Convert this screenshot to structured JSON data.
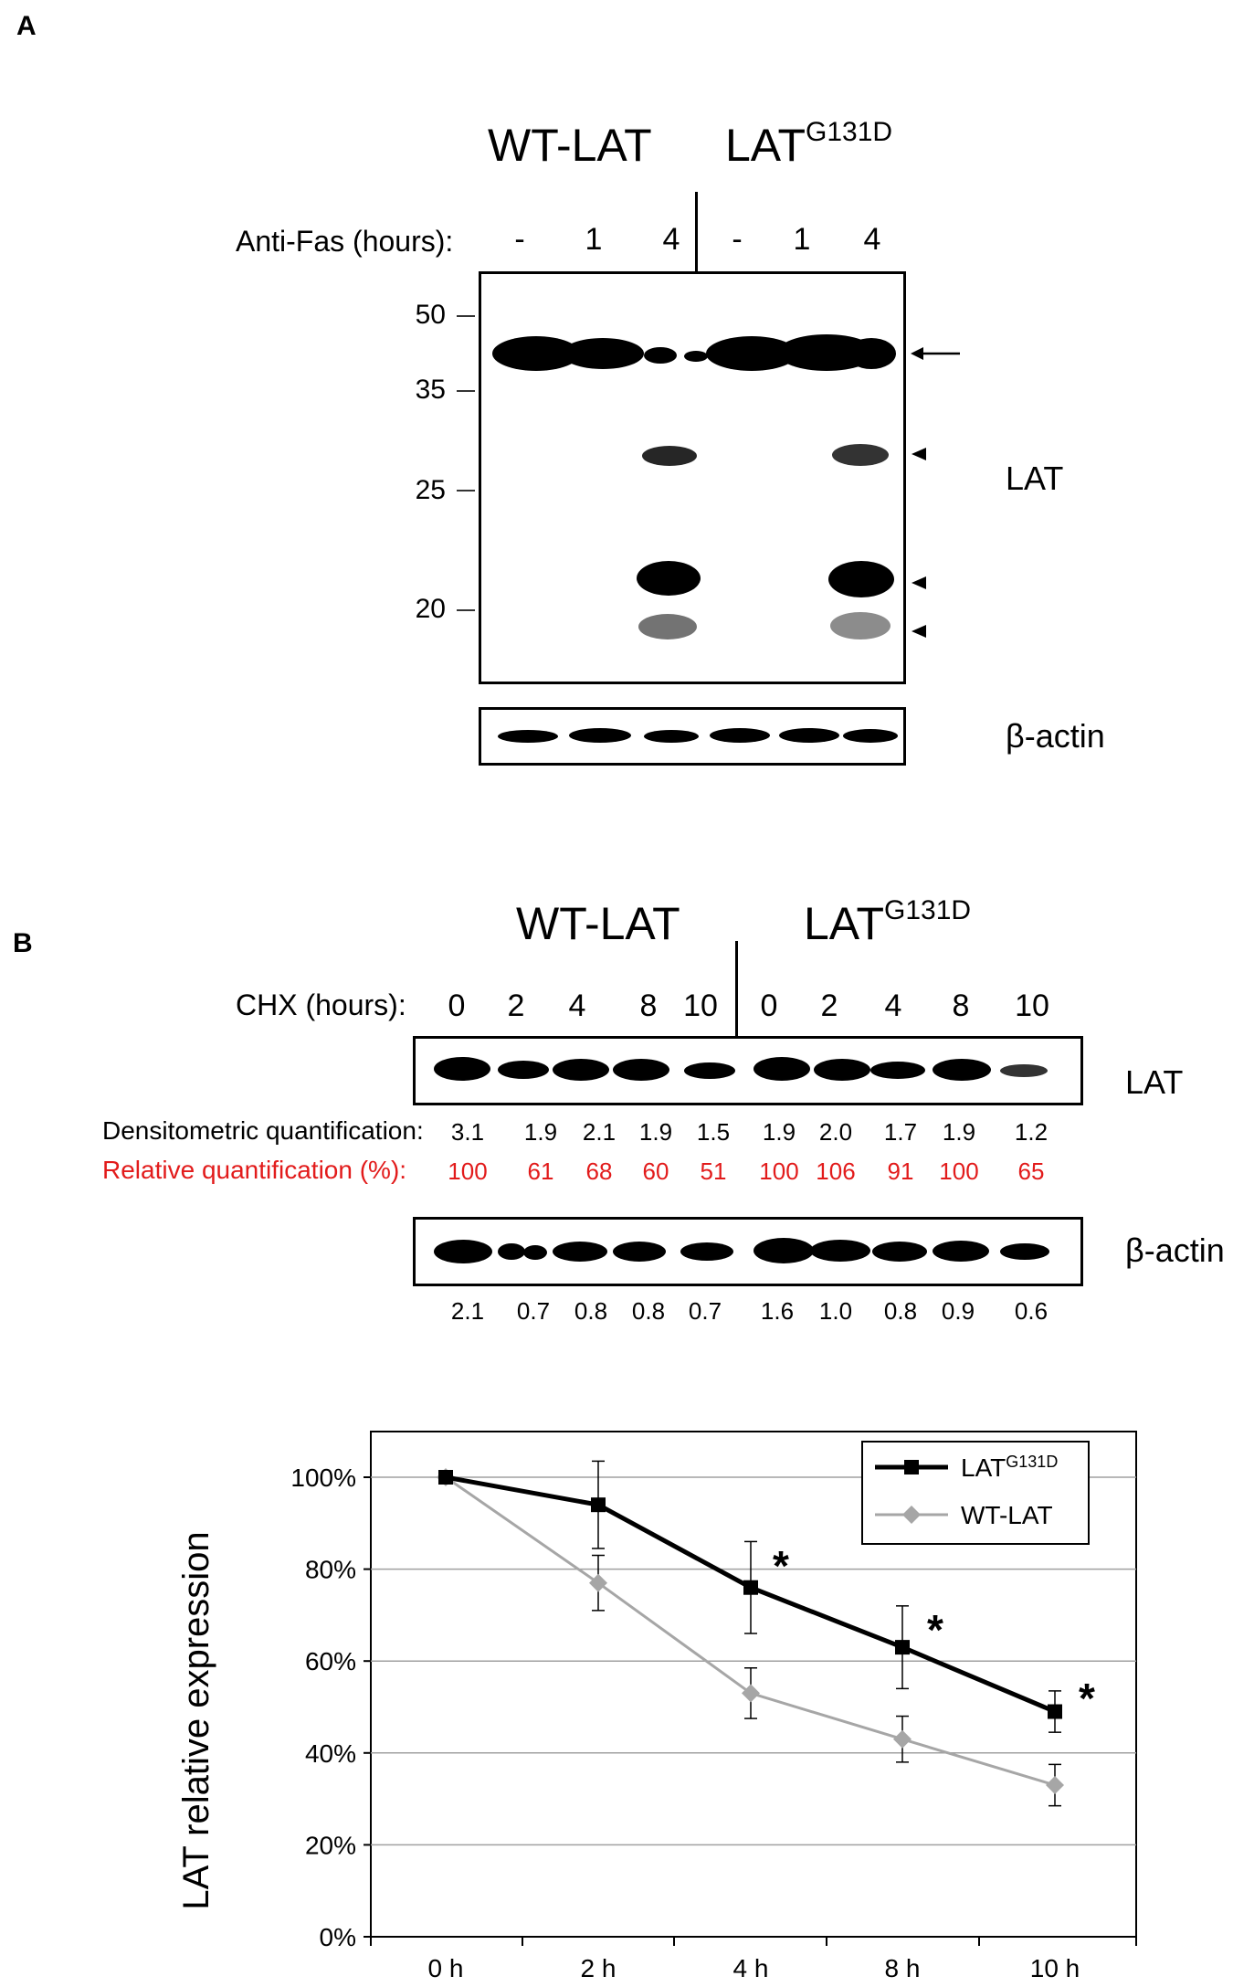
{
  "panelA": {
    "letter": "A",
    "group_wt": "WT-LAT",
    "group_mut_base": "LAT",
    "group_mut_sup": "G131D",
    "treatment_label": "Anti-Fas (hours):",
    "lanes": [
      "-",
      "1",
      "4",
      "-",
      "1",
      "4"
    ],
    "mw_markers": [
      "50",
      "35",
      "25",
      "20"
    ],
    "blot_label": "LAT",
    "loading_label": "β-actin"
  },
  "panelB": {
    "letter": "B",
    "group_wt": "WT-LAT",
    "group_mut_base": "LAT",
    "group_mut_sup": "G131D",
    "treatment_label": "CHX (hours):",
    "lanes": [
      "0",
      "2",
      "4",
      "8",
      "10",
      "0",
      "2",
      "4",
      "8",
      "10"
    ],
    "blot_label": "LAT",
    "loading_label": "β-actin",
    "densito_label": "Densitometric quantification:",
    "densito_values": [
      "3.1",
      "1.9",
      "2.1",
      "1.9",
      "1.5",
      "1.9",
      "2.0",
      "1.7",
      "1.9",
      "1.2"
    ],
    "relative_label": "Relative quantification (%):",
    "relative_values": [
      "100",
      "61",
      "68",
      "60",
      "51",
      "100",
      "106",
      "91",
      "100",
      "65"
    ],
    "actin_values": [
      "2.1",
      "0.7",
      "0.8",
      "0.8",
      "0.7",
      "1.6",
      "1.0",
      "0.8",
      "0.9",
      "0.6"
    ],
    "red_color": "#e21b1b"
  },
  "chart_data": {
    "type": "line",
    "categories": [
      "0 h",
      "2 h",
      "4 h",
      "8 h",
      "10 h"
    ],
    "ylabel": "LAT relative expression",
    "xlabel": "",
    "ylim": [
      0,
      100
    ],
    "yticks": [
      "0%",
      "20%",
      "40%",
      "60%",
      "80%",
      "100%"
    ],
    "grid": true,
    "legend_position": "top-right",
    "series": [
      {
        "name_base": "LAT",
        "name_sup": "G131D",
        "color": "#000000",
        "marker": "square",
        "values": [
          100,
          94,
          76,
          63,
          49
        ],
        "errors": [
          0,
          9.5,
          10,
          9,
          4.5
        ]
      },
      {
        "name": "WT-LAT",
        "color": "#a6a6a6",
        "marker": "diamond",
        "values": [
          100,
          77,
          53,
          43,
          33
        ],
        "errors": [
          0,
          6,
          5.5,
          5,
          4.5
        ]
      }
    ],
    "annotations": [
      "*",
      "*",
      "*"
    ]
  }
}
